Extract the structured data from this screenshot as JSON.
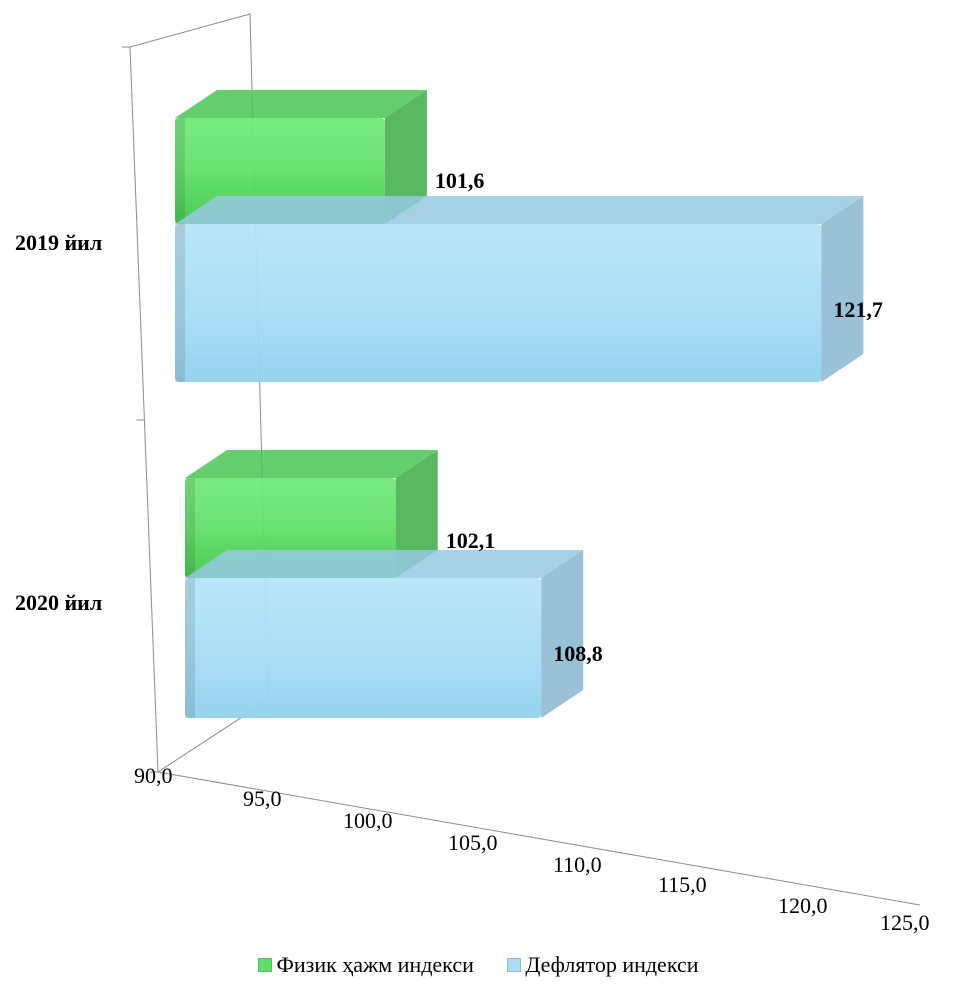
{
  "chart_data": {
    "type": "bar",
    "orientation": "horizontal",
    "categories": [
      "2019 йил",
      "2020 йил"
    ],
    "series": [
      {
        "name": "Физик ҳажм индекси",
        "values": [
          101.6,
          102.1
        ],
        "labels": [
          "101,6",
          "102,1"
        ],
        "color": "#5fe06a"
      },
      {
        "name": "Дефлятор индекси",
        "values": [
          121.7,
          108.8
        ],
        "labels": [
          "121,7",
          "108,8"
        ],
        "color": "#a8dcf5"
      }
    ],
    "xlim": [
      90,
      125
    ],
    "xticks": [
      "90,0",
      "95,0",
      "100,0",
      "105,0",
      "110,0",
      "115,0",
      "120,0",
      "125,0"
    ],
    "legend_position": "bottom",
    "grid": false
  }
}
